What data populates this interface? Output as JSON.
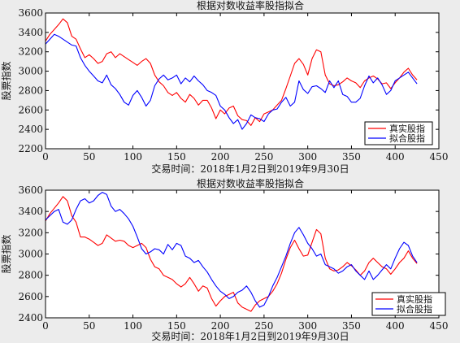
{
  "chart_data": [
    {
      "type": "line",
      "title": "根据对数收益率股指拟合",
      "xlabel": "交易时间：2018年1月2日到2019年9月30日",
      "ylabel": "股票指数",
      "xlim": [
        0,
        450
      ],
      "ylim": [
        2200,
        3600
      ],
      "xticks": [
        0,
        50,
        100,
        150,
        200,
        250,
        300,
        350,
        400,
        450
      ],
      "yticks": [
        2200,
        2400,
        2600,
        2800,
        3000,
        3200,
        3400,
        3600
      ],
      "legend_position": "bottom-right",
      "series": [
        {
          "name": "真实股指",
          "color": "#ff0000",
          "x": [
            0,
            5,
            10,
            15,
            20,
            25,
            30,
            35,
            40,
            45,
            50,
            55,
            60,
            65,
            70,
            75,
            80,
            85,
            90,
            95,
            100,
            105,
            110,
            115,
            120,
            125,
            130,
            135,
            140,
            145,
            150,
            155,
            160,
            165,
            170,
            175,
            180,
            185,
            190,
            195,
            200,
            205,
            210,
            215,
            220,
            225,
            230,
            235,
            240,
            245,
            250,
            255,
            260,
            265,
            270,
            275,
            280,
            285,
            290,
            295,
            300,
            305,
            310,
            315,
            320,
            325,
            330,
            335,
            340,
            345,
            350,
            355,
            360,
            365,
            370,
            375,
            380,
            385,
            390,
            395,
            400,
            405,
            410,
            415,
            420,
            425
          ],
          "values": [
            3310,
            3380,
            3430,
            3480,
            3540,
            3500,
            3360,
            3330,
            3230,
            3140,
            3170,
            3130,
            3080,
            3100,
            3180,
            3200,
            3140,
            3180,
            3150,
            3120,
            3090,
            3060,
            3100,
            3130,
            3080,
            2960,
            2890,
            2850,
            2780,
            2750,
            2780,
            2720,
            2680,
            2760,
            2720,
            2650,
            2700,
            2700,
            2620,
            2510,
            2600,
            2560,
            2620,
            2640,
            2540,
            2500,
            2490,
            2440,
            2520,
            2480,
            2560,
            2580,
            2600,
            2650,
            2700,
            2820,
            2950,
            3080,
            3130,
            3070,
            2960,
            3130,
            3220,
            3200,
            2960,
            2870,
            2850,
            2860,
            2890,
            2930,
            2900,
            2880,
            2830,
            2900,
            2930,
            2950,
            2920,
            2870,
            2880,
            2820,
            2880,
            2930,
            2990,
            3030,
            2960,
            2910
          ]
        },
        {
          "name": "拟合股指",
          "color": "#0000ff",
          "x": [
            0,
            5,
            10,
            15,
            20,
            25,
            30,
            35,
            40,
            45,
            50,
            55,
            60,
            65,
            70,
            75,
            80,
            85,
            90,
            95,
            100,
            105,
            110,
            115,
            120,
            125,
            130,
            135,
            140,
            145,
            150,
            155,
            160,
            165,
            170,
            175,
            180,
            185,
            190,
            195,
            200,
            205,
            210,
            215,
            220,
            225,
            230,
            235,
            240,
            245,
            250,
            255,
            260,
            265,
            270,
            275,
            280,
            285,
            290,
            295,
            300,
            305,
            310,
            315,
            320,
            325,
            330,
            335,
            340,
            345,
            350,
            355,
            360,
            365,
            370,
            375,
            380,
            385,
            390,
            395,
            400,
            405,
            410,
            415,
            420,
            425
          ],
          "values": [
            3280,
            3330,
            3380,
            3360,
            3330,
            3300,
            3270,
            3260,
            3140,
            3060,
            3000,
            2950,
            2900,
            2880,
            2960,
            2860,
            2820,
            2760,
            2680,
            2650,
            2750,
            2800,
            2730,
            2640,
            2700,
            2850,
            2920,
            2960,
            2910,
            2930,
            2960,
            2870,
            2930,
            2890,
            2950,
            2900,
            2860,
            2800,
            2780,
            2750,
            2640,
            2600,
            2520,
            2460,
            2500,
            2400,
            2460,
            2550,
            2520,
            2510,
            2480,
            2560,
            2600,
            2610,
            2680,
            2730,
            2640,
            2680,
            2900,
            2810,
            2770,
            2840,
            2850,
            2820,
            2780,
            2900,
            2830,
            2900,
            2760,
            2740,
            2680,
            2680,
            2720,
            2850,
            2950,
            2880,
            2930,
            2860,
            2760,
            2800,
            2900,
            2930,
            2960,
            2990,
            2930,
            2870
          ]
        }
      ]
    },
    {
      "type": "line",
      "title": "根据对数收益率股指拟合",
      "xlabel": "交易时间：2018年1月2日到2019年9月30日",
      "ylabel": "股票指数",
      "xlim": [
        0,
        450
      ],
      "ylim": [
        2400,
        3600
      ],
      "xticks": [
        0,
        50,
        100,
        150,
        200,
        250,
        300,
        350,
        400,
        450
      ],
      "yticks": [
        2400,
        2600,
        2800,
        3000,
        3200,
        3400,
        3600
      ],
      "legend_position": "bottom-right",
      "series": [
        {
          "name": "真实股指",
          "color": "#ff0000",
          "x": [
            0,
            5,
            10,
            15,
            20,
            25,
            30,
            35,
            40,
            45,
            50,
            55,
            60,
            65,
            70,
            75,
            80,
            85,
            90,
            95,
            100,
            105,
            110,
            115,
            120,
            125,
            130,
            135,
            140,
            145,
            150,
            155,
            160,
            165,
            170,
            175,
            180,
            185,
            190,
            195,
            200,
            205,
            210,
            215,
            220,
            225,
            230,
            235,
            240,
            245,
            250,
            255,
            260,
            265,
            270,
            275,
            280,
            285,
            290,
            295,
            300,
            305,
            310,
            315,
            320,
            325,
            330,
            335,
            340,
            345,
            350,
            355,
            360,
            365,
            370,
            375,
            380,
            385,
            390,
            395,
            400,
            405,
            410,
            415,
            420,
            425
          ],
          "values": [
            3310,
            3380,
            3430,
            3480,
            3540,
            3500,
            3360,
            3300,
            3160,
            3160,
            3140,
            3110,
            3080,
            3100,
            3180,
            3150,
            3120,
            3130,
            3120,
            3080,
            3060,
            3080,
            3100,
            3060,
            2950,
            2880,
            2860,
            2800,
            2780,
            2760,
            2720,
            2690,
            2720,
            2780,
            2720,
            2650,
            2700,
            2680,
            2580,
            2510,
            2560,
            2600,
            2620,
            2640,
            2540,
            2500,
            2480,
            2460,
            2520,
            2560,
            2580,
            2600,
            2650,
            2720,
            2820,
            2950,
            3060,
            3130,
            3050,
            2980,
            2990,
            3110,
            3230,
            3190,
            2960,
            2860,
            2840,
            2850,
            2880,
            2920,
            2890,
            2850,
            2800,
            2840,
            2920,
            2960,
            2920,
            2880,
            2860,
            2810,
            2860,
            2920,
            2960,
            3030,
            2960,
            2910
          ]
        },
        {
          "name": "拟合股指",
          "color": "#0000ff",
          "x": [
            0,
            5,
            10,
            15,
            20,
            25,
            30,
            35,
            40,
            45,
            50,
            55,
            60,
            65,
            70,
            75,
            80,
            85,
            90,
            95,
            100,
            105,
            110,
            115,
            120,
            125,
            130,
            135,
            140,
            145,
            150,
            155,
            160,
            165,
            170,
            175,
            180,
            185,
            190,
            195,
            200,
            205,
            210,
            215,
            220,
            225,
            230,
            235,
            240,
            245,
            250,
            255,
            260,
            265,
            270,
            275,
            280,
            285,
            290,
            295,
            300,
            305,
            310,
            315,
            320,
            325,
            330,
            335,
            340,
            345,
            350,
            355,
            360,
            365,
            370,
            375,
            380,
            385,
            390,
            395,
            400,
            405,
            410,
            415,
            420,
            425
          ],
          "values": [
            3320,
            3360,
            3400,
            3420,
            3300,
            3280,
            3320,
            3420,
            3500,
            3520,
            3480,
            3500,
            3550,
            3580,
            3560,
            3450,
            3400,
            3420,
            3380,
            3330,
            3260,
            3160,
            3050,
            3000,
            3020,
            3050,
            3040,
            3000,
            3090,
            3040,
            3100,
            3080,
            2980,
            2960,
            2920,
            2940,
            2880,
            2830,
            2760,
            2700,
            2650,
            2620,
            2580,
            2600,
            2640,
            2660,
            2700,
            2640,
            2560,
            2500,
            2520,
            2600,
            2700,
            2780,
            2880,
            2980,
            3100,
            3200,
            3250,
            3180,
            3100,
            3050,
            2980,
            3000,
            2900,
            2880,
            2860,
            2820,
            2840,
            2880,
            2900,
            2840,
            2800,
            2760,
            2840,
            2760,
            2800,
            2850,
            2900,
            2860,
            2960,
            3050,
            3110,
            3080,
            2980,
            2920
          ]
        }
      ]
    }
  ]
}
